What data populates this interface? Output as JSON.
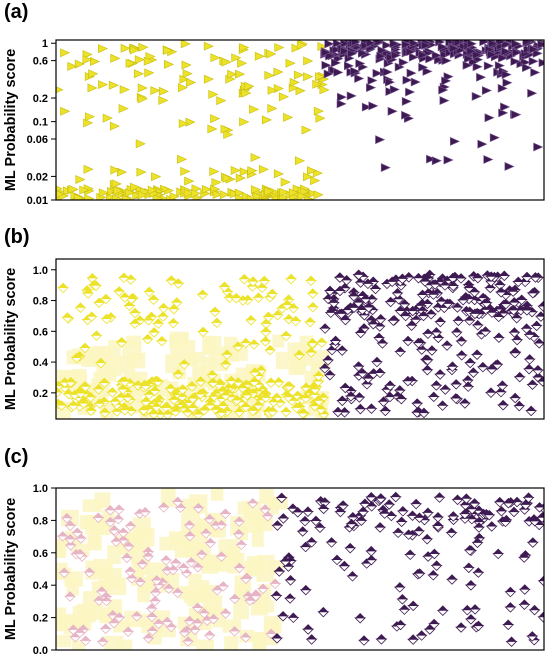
{
  "colors": {
    "class0": "#ece22a",
    "class1": "#3e1a52",
    "shade0": "#fbf6c2",
    "pinkish": "#e6b4c4",
    "axis": "#000000"
  },
  "chart_data": [
    {
      "panel": "(a)",
      "type": "scatter",
      "ylabel": "ML Probability score",
      "yscale": "log",
      "ylim": [
        0.01,
        1.1
      ],
      "yticks": [
        {
          "v": 0.01,
          "label": "0.01"
        },
        {
          "v": 0.02,
          "label": "0.02"
        },
        {
          "v": 0.06,
          "label": "0.06"
        },
        {
          "v": 0.1,
          "label": "0.1"
        },
        {
          "v": 0.2,
          "label": "0.2"
        },
        {
          "v": 0.6,
          "label": "0.6"
        },
        {
          "v": 1,
          "label": "1"
        }
      ],
      "marker": "right-triangle",
      "series": [
        {
          "class": 0,
          "color": "#ece22a",
          "n": 260,
          "range": [
            0.0,
            0.55
          ],
          "dist": "mix-low-log"
        },
        {
          "class": 1,
          "color": "#3e1a52",
          "n": 280,
          "range": [
            0.55,
            1.0
          ],
          "dist": "mix-high-log"
        }
      ]
    },
    {
      "panel": "(b)",
      "type": "scatter",
      "ylabel": "ML Probability score",
      "yscale": "linear",
      "ylim": [
        0.03,
        1.07
      ],
      "yticks": [
        {
          "v": 0.2,
          "label": "0.2"
        },
        {
          "v": 0.4,
          "label": "0.4"
        },
        {
          "v": 0.6,
          "label": "0.6"
        },
        {
          "v": 0.8,
          "label": "0.8"
        },
        {
          "v": 1.0,
          "label": "1.0"
        }
      ],
      "marker": "diamond-pair",
      "series": [
        {
          "class": 0,
          "color": "#ece22a",
          "n": 300,
          "range": [
            0.0,
            0.55
          ],
          "dist": "mix-low-lin"
        },
        {
          "class": 1,
          "color": "#3e1a52",
          "n": 280,
          "range": [
            0.55,
            1.0
          ],
          "dist": "mix-high-lin"
        }
      ]
    },
    {
      "panel": "(c)",
      "type": "scatter",
      "ylabel": "ML Probability score",
      "yscale": "linear",
      "ylim": [
        0.0,
        1.0
      ],
      "yticks": [
        {
          "v": 0.0,
          "label": "0.0"
        },
        {
          "v": 0.2,
          "label": "0.2"
        },
        {
          "v": 0.4,
          "label": "0.4"
        },
        {
          "v": 0.6,
          "label": "0.6"
        },
        {
          "v": 0.8,
          "label": "0.8"
        },
        {
          "v": 1.0,
          "label": "1.0"
        }
      ],
      "marker": "diamond-pair",
      "series": [
        {
          "class": 0,
          "color": "#e6b4c4",
          "n": 120,
          "range": [
            0.0,
            0.45
          ],
          "dist": "uniform"
        },
        {
          "class": 1,
          "color": "#3e1a52",
          "n": 170,
          "range": [
            0.45,
            1.0
          ],
          "dist": "mix-high-c"
        }
      ]
    }
  ]
}
